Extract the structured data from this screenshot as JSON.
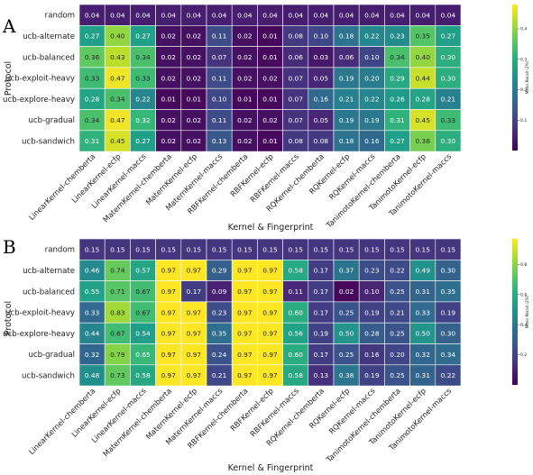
{
  "chart_data": [
    {
      "type": "heatmap",
      "panel_label": "A",
      "ylabel": "Protocol",
      "xlabel": "Kernel & Fingerprint",
      "colorbar_label": "Mean Recall (2%)",
      "colorbar_ticks": [
        "0.1",
        "0.2",
        "0.3",
        "0.4"
      ],
      "vmin": 0.0,
      "vmax": 0.48,
      "colormap": "viridis",
      "rows": [
        "random",
        "ucb-alternate",
        "ucb-balanced",
        "ucb-exploit-heavy",
        "ucb-explore-heavy",
        "ucb-gradual",
        "ucb-sandwich"
      ],
      "columns": [
        "LinearKernel-chemberta",
        "LinearKernel-ecfp",
        "LinearKernel-maccs",
        "MaternKernel-chemberta",
        "MaternKernel-ecfp",
        "MaternKernel-maccs",
        "RBFKernel-chemberta",
        "RBFKernel-ecfp",
        "RBFKernel-maccs",
        "RQKernel-chemberta",
        "RQKernel-ecfp",
        "RQKernel-maccs",
        "TanimotoKernel-chemberta",
        "TanimotoKernel-ecfp",
        "TanimotoKernel-maccs"
      ],
      "values": [
        [
          "0.04",
          "0.04",
          "0.04",
          "0.04",
          "0.04",
          "0.04",
          "0.04",
          "0.04",
          "0.04",
          "0.04",
          "0.04",
          "0.04",
          "0.04",
          "0.04",
          "0.04"
        ],
        [
          "0.27",
          "0.40",
          "0.27",
          "0.02",
          "0.02",
          "0.11",
          "0.02",
          "0.01",
          "0.08",
          "0.10",
          "0.18",
          "0.22",
          "0.23",
          "0.35",
          "0.27"
        ],
        [
          "0.36",
          "0.43",
          "0.34",
          "0.02",
          "0.02",
          "0.07",
          "0.02",
          "0.01",
          "0.06",
          "0.03",
          "0.06",
          "0.10",
          "0.34",
          "0.40",
          "0.30"
        ],
        [
          "0.33",
          "0.47",
          "0.33",
          "0.02",
          "0.02",
          "0.11",
          "0.02",
          "0.02",
          "0.07",
          "0.05",
          "0.19",
          "0.20",
          "0.29",
          "0.44",
          "0.30"
        ],
        [
          "0.28",
          "0.34",
          "0.22",
          "0.01",
          "0.01",
          "0.10",
          "0.01",
          "0.01",
          "0.07",
          "0.16",
          "0.21",
          "0.22",
          "0.26",
          "0.28",
          "0.21"
        ],
        [
          "0.34",
          "0.47",
          "0.32",
          "0.02",
          "0.02",
          "0.11",
          "0.02",
          "0.02",
          "0.07",
          "0.05",
          "0.19",
          "0.19",
          "0.31",
          "0.45",
          "0.33"
        ],
        [
          "0.31",
          "0.45",
          "0.27",
          "0.02",
          "0.02",
          "0.13",
          "0.02",
          "0.01",
          "0.08",
          "0.08",
          "0.18",
          "0.16",
          "0.27",
          "0.38",
          "0.30"
        ]
      ]
    },
    {
      "type": "heatmap",
      "panel_label": "B",
      "ylabel": "Protocol",
      "xlabel": "Kernel & Fingerprint",
      "colorbar_label": "Mean Recall (2%)",
      "colorbar_ticks": [
        "0.2",
        "0.4",
        "0.6",
        "0.8"
      ],
      "vmin": 0.0,
      "vmax": 0.97,
      "colormap": "viridis",
      "rows": [
        "random",
        "ucb-alternate",
        "ucb-balanced",
        "ucb-exploit-heavy",
        "ucb-explore-heavy",
        "ucb-gradual",
        "ucb-sandwich"
      ],
      "columns": [
        "LinearKernel-chemberta",
        "LinearKernel-ecfp",
        "LinearKernel-maccs",
        "MaternKernel-chemberta",
        "MaternKernel-ecfp",
        "MaternKernel-maccs",
        "RBFKernel-chemberta",
        "RBFKernel-ecfp",
        "RBFKernel-maccs",
        "RQKernel-chemberta",
        "RQKernel-ecfp",
        "RQKernel-maccs",
        "TanimotoKernel-chemberta",
        "TanimotoKernel-ecfp",
        "TanimotoKernel-maccs"
      ],
      "values": [
        [
          "0.15",
          "0.15",
          "0.15",
          "0.15",
          "0.15",
          "0.15",
          "0.15",
          "0.15",
          "0.15",
          "0.15",
          "0.15",
          "0.15",
          "0.15",
          "0.15",
          "0.15"
        ],
        [
          "0.46",
          "0.74",
          "0.57",
          "0.97",
          "0.97",
          "0.29",
          "0.97",
          "0.97",
          "0.58",
          "0.17",
          "0.37",
          "0.23",
          "0.22",
          "0.49",
          "0.30"
        ],
        [
          "0.55",
          "0.71",
          "0.67",
          "0.97",
          "0.17",
          "0.09",
          "0.97",
          "0.97",
          "0.11",
          "0.17",
          "0.02",
          "0.10",
          "0.25",
          "0.31",
          "0.35"
        ],
        [
          "0.33",
          "0.83",
          "0.67",
          "0.97",
          "0.97",
          "0.23",
          "0.97",
          "0.97",
          "0.60",
          "0.17",
          "0.25",
          "0.19",
          "0.21",
          "0.33",
          "0.19"
        ],
        [
          "0.44",
          "0.67",
          "0.54",
          "0.97",
          "0.97",
          "0.35",
          "0.97",
          "0.97",
          "0.56",
          "0.19",
          "0.50",
          "0.28",
          "0.25",
          "0.50",
          "0.30"
        ],
        [
          "0.32",
          "0.79",
          "0.65",
          "0.97",
          "0.97",
          "0.24",
          "0.97",
          "0.97",
          "0.60",
          "0.17",
          "0.25",
          "0.16",
          "0.20",
          "0.32",
          "0.34"
        ],
        [
          "0.48",
          "0.73",
          "0.58",
          "0.97",
          "0.97",
          "0.21",
          "0.97",
          "0.97",
          "0.58",
          "0.13",
          "0.38",
          "0.19",
          "0.25",
          "0.31",
          "0.22"
        ]
      ]
    }
  ]
}
